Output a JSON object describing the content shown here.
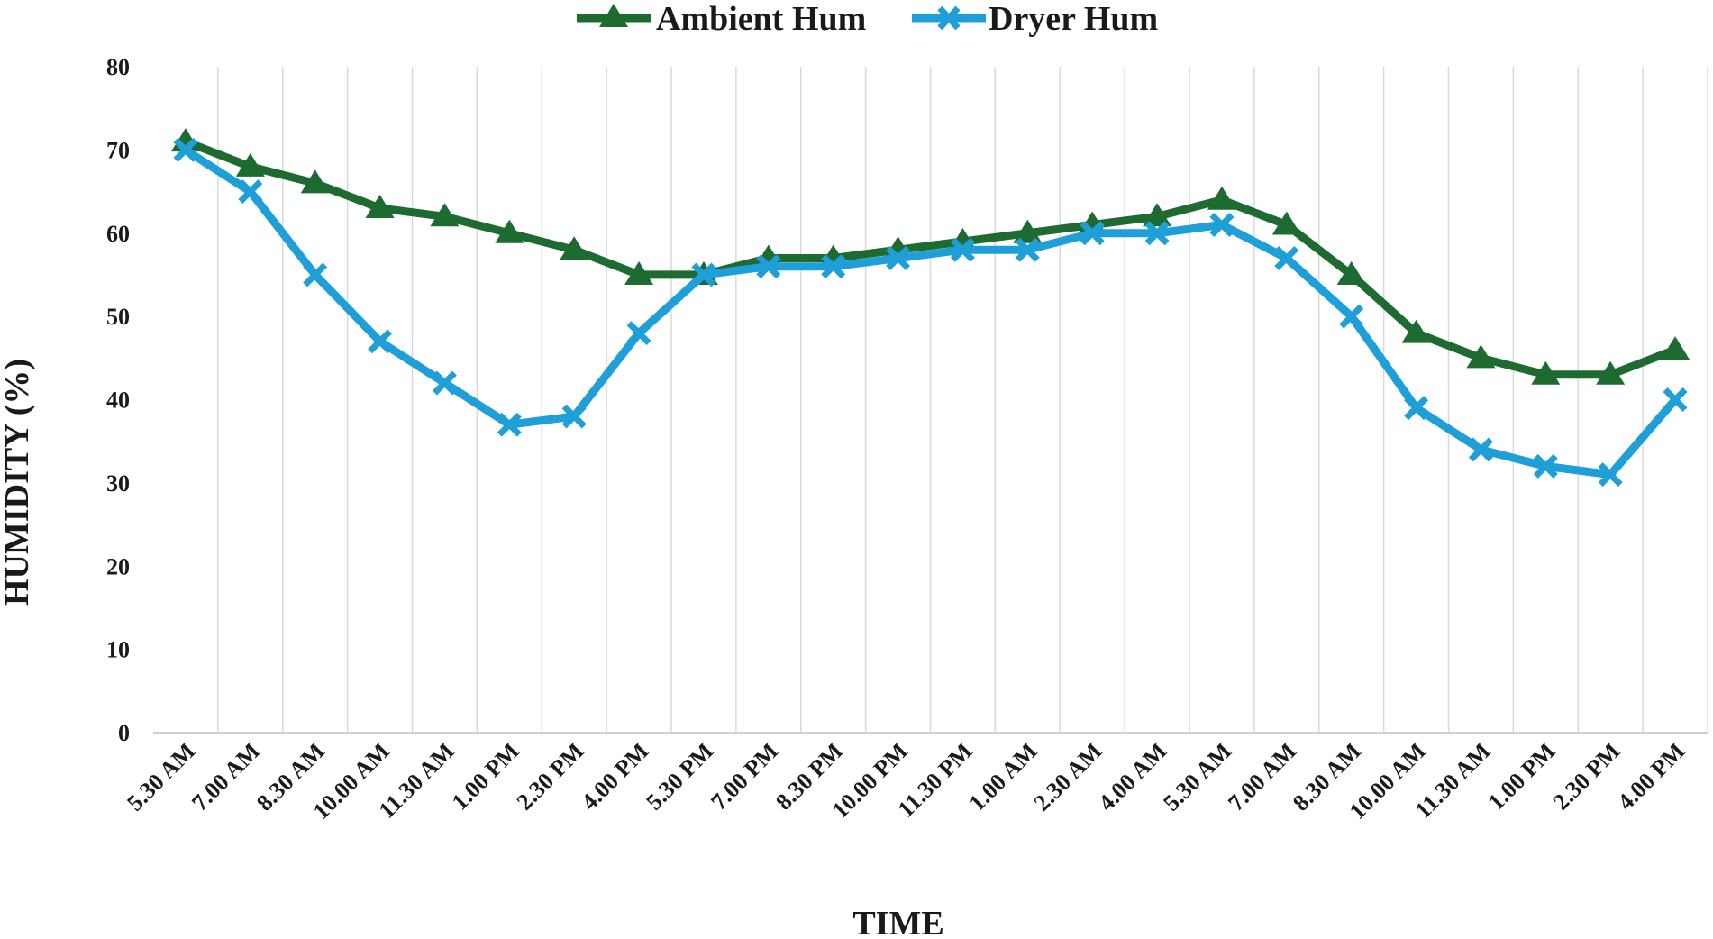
{
  "chart_data": {
    "type": "line",
    "title": "",
    "xlabel": "TIME",
    "ylabel": "HUMIDITY (%)",
    "ylim": [
      0,
      80
    ],
    "yticks": [
      0,
      10,
      20,
      30,
      40,
      50,
      60,
      70,
      80
    ],
    "grid": "vertical",
    "legend_position": "top-center",
    "categories": [
      "5.30 AM",
      "7.00 AM",
      "8.30 AM",
      "10.00 AM",
      "11.30 AM",
      "1.00 PM",
      "2.30 PM",
      "4.00 PM",
      "5.30 PM",
      "7.00 PM",
      "8.30 PM",
      "10.00 PM",
      "11.30 PM",
      "1.00 AM",
      "2.30 AM",
      "4.00 AM",
      "5.30 AM",
      "7.00 AM",
      "8.30 AM",
      "10.00 AM",
      "11.30 AM",
      "1.00 PM",
      "2.30 PM",
      "4.00 PM"
    ],
    "series": [
      {
        "name": "Ambient Hum",
        "color": "#1e6b32",
        "marker": "triangle",
        "values": [
          71,
          68,
          66,
          63,
          62,
          60,
          58,
          55,
          55,
          57,
          57,
          58,
          59,
          60,
          61,
          62,
          64,
          61,
          55,
          48,
          45,
          43,
          43,
          46
        ]
      },
      {
        "name": "Dryer Hum",
        "color": "#1f9fd8",
        "marker": "x",
        "values": [
          70,
          65,
          55,
          47,
          42,
          37,
          38,
          48,
          55,
          56,
          56,
          57,
          58,
          58,
          60,
          60,
          61,
          57,
          50,
          39,
          34,
          32,
          31,
          40
        ]
      }
    ]
  }
}
